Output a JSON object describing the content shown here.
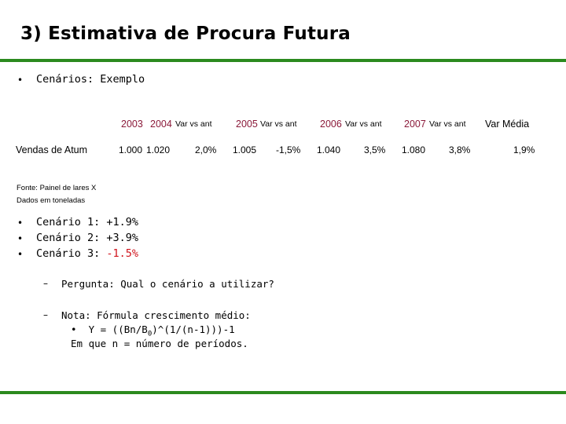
{
  "title": "3) Estimativa de Procura Futura",
  "bullet_scenarios_header": "Cenários: Exemplo",
  "table": {
    "header": {
      "y2003": "2003",
      "y2004": "2004",
      "var1": "Var vs ant",
      "y2005": "2005",
      "var2": "Var vs ant",
      "y2006": "2006",
      "var3": "Var vs ant",
      "y2007": "2007",
      "var4": "Var vs ant",
      "var_media": "Var Média"
    },
    "row": {
      "label": "Vendas de Atum",
      "v2003": "1.000",
      "v2004": "1.020",
      "var1": "2,0%",
      "v2005": "1.005",
      "var2": "-1,5%",
      "v2006": "1.040",
      "var3": "3,5%",
      "v2007": "1.080",
      "var4": "3,8%",
      "var_media": "1,9%"
    },
    "source": "Fonte: Painel de lares X",
    "units": "Dados em toneladas"
  },
  "scenarios": [
    {
      "label": "Cenário 1:",
      "value": "+1.9%"
    },
    {
      "label": "Cenário 2:",
      "value": "+3.9%"
    },
    {
      "label": "Cenário 3:",
      "value": "-1.5%"
    }
  ],
  "sub": {
    "question": "Pergunta: Qual o cenário a utilizar?",
    "note": "Nota: Fórmula crescimento médio:",
    "formula_prefix": "Y = ((Bn/B",
    "formula_sub": "0",
    "formula_suffix": ")^(1/(n-1)))-1",
    "formula_desc": "Em que n = número de períodos."
  },
  "colors": {
    "accent_green": "#2b8a1e",
    "year_color": "#8b1a3a",
    "negative_red": "#d0121b"
  }
}
